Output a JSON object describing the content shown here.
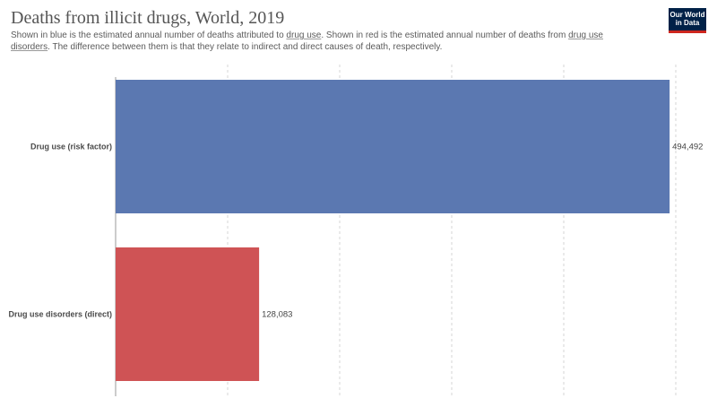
{
  "header": {
    "title": "Deaths from illicit drugs, World, 2019",
    "subtitle_part1": "Shown in blue is the estimated annual number of deaths attributed to ",
    "subtitle_link1": "drug use",
    "subtitle_part2": ". Shown in red is the estimated annual number of deaths from ",
    "subtitle_link2": "drug use disorders",
    "subtitle_part3": ". The difference between them is that they relate to indirect and direct causes of death, respectively."
  },
  "logo": {
    "line1": "Our World",
    "line2": "in Data",
    "bg_color": "#002147",
    "accent_color": "#ce261e"
  },
  "chart_data": {
    "type": "bar",
    "orientation": "horizontal",
    "categories": [
      "Drug use (risk factor)",
      "Drug use disorders (direct)"
    ],
    "values": [
      494492,
      128083
    ],
    "value_labels": [
      "494,492",
      "128,083"
    ],
    "colors": [
      "#5b78b1",
      "#cf5355"
    ],
    "xlim": [
      0,
      500000
    ],
    "grid": true,
    "gridline_values": [
      100000,
      200000,
      300000,
      400000,
      500000
    ]
  }
}
